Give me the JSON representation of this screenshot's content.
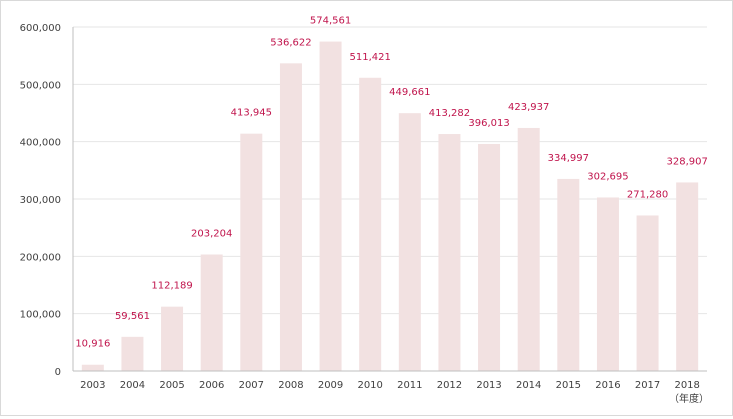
{
  "chart_data": {
    "type": "bar",
    "title": "",
    "xlabel": "",
    "ylabel": "",
    "unit_label": "（年度）",
    "categories": [
      "2003",
      "2004",
      "2005",
      "2006",
      "2007",
      "2008",
      "2009",
      "2010",
      "2011",
      "2012",
      "2013",
      "2014",
      "2015",
      "2016",
      "2017",
      "2018"
    ],
    "values": [
      10916,
      59561,
      112189,
      203204,
      413945,
      536622,
      574561,
      511421,
      449661,
      413282,
      396013,
      423937,
      334997,
      302695,
      271280,
      328907
    ],
    "data_labels": [
      "10,916",
      "59,561",
      "112,189",
      "203,204",
      "413,945",
      "536,622",
      "574,561",
      "511,421",
      "449,661",
      "413,282",
      "396,013",
      "423,937",
      "334,997",
      "302,695",
      "271,280",
      "328,907"
    ],
    "y_ticks": [
      "0",
      "100,000",
      "200,000",
      "300,000",
      "400,000",
      "500,000",
      "600,000"
    ],
    "ylim": [
      0,
      600000
    ],
    "grid": true,
    "legend": "none",
    "colors": {
      "bar": "#f2e1e1",
      "data_label": "#c0144c",
      "gridline": "#e6e6e6",
      "axis": "#bfbfbf",
      "text": "#404040"
    }
  }
}
